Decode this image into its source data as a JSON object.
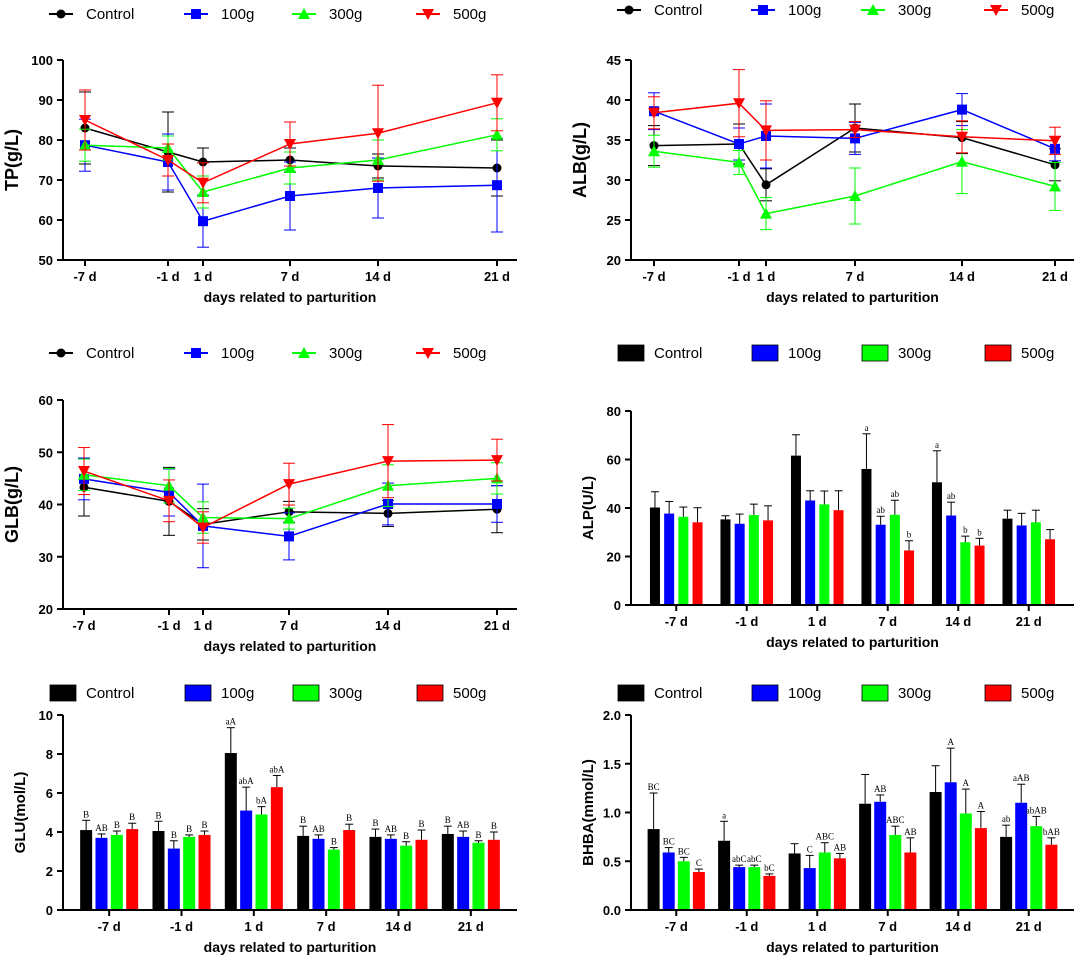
{
  "colors": {
    "Control": "#000000",
    "100g": "#0000ff",
    "300g": "#00ff00",
    "500g": "#ff0000"
  },
  "chart_data": [
    {
      "id": "tp",
      "type": "line",
      "ylabel": "TP(g/L)",
      "xlabel": "days related to parturition",
      "categories": [
        "-7 d",
        "-1 d",
        "1 d",
        "7 d",
        "14 d",
        "21 d"
      ],
      "x": [
        -7,
        -1,
        1,
        7,
        14,
        21
      ],
      "ylim": [
        50,
        100
      ],
      "yticks": [
        50,
        60,
        70,
        80,
        90,
        100
      ],
      "series": [
        {
          "name": "Control",
          "values": [
            83,
            77,
            74.5,
            75,
            73.5,
            73
          ],
          "errors": [
            9,
            10,
            3.5,
            3,
            3,
            7
          ]
        },
        {
          "name": "100g",
          "values": [
            78.7,
            74.5,
            59.7,
            66,
            68,
            68.7
          ],
          "errors": [
            6.5,
            7,
            6.5,
            8.5,
            7.5,
            11.7
          ]
        },
        {
          "name": "300g",
          "values": [
            78.7,
            78,
            67,
            73,
            75,
            81.3
          ],
          "errors": [
            4,
            3,
            4,
            4,
            5,
            4
          ]
        },
        {
          "name": "500g",
          "values": [
            85,
            75,
            69.3,
            79,
            81.7,
            89.3
          ],
          "errors": [
            7.5,
            4,
            5,
            5.5,
            12,
            7
          ]
        }
      ]
    },
    {
      "id": "alb",
      "type": "line",
      "ylabel": "ALB(g/L)",
      "xlabel": "days related to parturition",
      "categories": [
        "-7 d",
        "-1 d",
        "1 d",
        "7 d",
        "14 d",
        "21 d"
      ],
      "x": [
        -7,
        -1,
        1,
        7,
        14,
        21
      ],
      "ylim": [
        20,
        45
      ],
      "yticks": [
        20,
        25,
        30,
        35,
        40,
        45
      ],
      "series": [
        {
          "name": "Control",
          "values": [
            34.3,
            34.5,
            29.4,
            36.5,
            35.3,
            31.9
          ],
          "errors": [
            2.5,
            2.5,
            2,
            3,
            2,
            2
          ]
        },
        {
          "name": "100g",
          "values": [
            38.6,
            34.5,
            35.5,
            35.2,
            38.8,
            33.9
          ],
          "errors": [
            2.3,
            2,
            4,
            2,
            2,
            1.5
          ]
        },
        {
          "name": "300g",
          "values": [
            33.6,
            32.2,
            25.8,
            28,
            32.3,
            29.2
          ],
          "errors": [
            2,
            1.5,
            2,
            3.5,
            4,
            3
          ]
        },
        {
          "name": "500g",
          "values": [
            38.4,
            39.6,
            36.2,
            36.3,
            35.4,
            34.9
          ],
          "errors": [
            2,
            4.2,
            3.7,
            1,
            2,
            1.7
          ]
        }
      ]
    },
    {
      "id": "glb",
      "type": "line",
      "ylabel": "GLB(g/L)",
      "xlabel": "days related to parturition",
      "categories": [
        "-7 d",
        "-1 d",
        "1 d",
        "7 d",
        "14 d",
        "21 d"
      ],
      "x": [
        -7,
        -1,
        1,
        7,
        14,
        21
      ],
      "ylim": [
        20,
        60
      ],
      "yticks": [
        20,
        30,
        40,
        50,
        60
      ],
      "series": [
        {
          "name": "Control",
          "values": [
            43.3,
            40.6,
            36.2,
            38.6,
            38.3,
            39.1
          ],
          "errors": [
            5.5,
            6.5,
            3,
            2,
            2.5,
            4.5
          ]
        },
        {
          "name": "100g",
          "values": [
            44.9,
            42.3,
            35.9,
            33.9,
            40.1,
            40.1
          ],
          "errors": [
            4,
            4.5,
            8,
            4.5,
            4,
            3.5
          ]
        },
        {
          "name": "300g",
          "values": [
            45.7,
            43.6,
            37.5,
            37.3,
            43.6,
            45
          ],
          "errors": [
            3,
            3.3,
            3,
            2,
            4,
            3
          ]
        },
        {
          "name": "500g",
          "values": [
            46.4,
            40.7,
            35.6,
            43.9,
            48.3,
            48.5
          ],
          "errors": [
            4.5,
            4,
            3,
            4,
            7,
            4
          ]
        }
      ]
    },
    {
      "id": "alp",
      "type": "bar",
      "ylabel": "ALP(U/L)",
      "xlabel": "days related to parturition",
      "categories": [
        "-7 d",
        "-1 d",
        "1 d",
        "7 d",
        "14 d",
        "21 d"
      ],
      "ylim": [
        0,
        80
      ],
      "yticks": [
        0,
        20,
        40,
        60,
        80
      ],
      "series": [
        {
          "name": "Control",
          "values": [
            40.2,
            35.3,
            61.6,
            56.1,
            50.6,
            35.6
          ],
          "errors": [
            6.5,
            1.5,
            8.6,
            14.5,
            13,
            3.5
          ],
          "labels": [
            "",
            "",
            "",
            "a",
            "a",
            ""
          ]
        },
        {
          "name": "100g",
          "values": [
            37.7,
            33.5,
            43.1,
            33.1,
            36.9,
            32.8
          ],
          "errors": [
            5,
            4,
            4,
            3.5,
            5.5,
            5
          ],
          "labels": [
            "",
            "",
            "",
            "ab",
            "ab",
            ""
          ]
        },
        {
          "name": "300g",
          "values": [
            36.4,
            37.1,
            41.5,
            37.2,
            25.9,
            34.1
          ],
          "errors": [
            4,
            4.5,
            5.5,
            6,
            2.5,
            5
          ],
          "labels": [
            "",
            "",
            "",
            "ab",
            "b",
            ""
          ]
        },
        {
          "name": "500g",
          "values": [
            34.1,
            34.9,
            39.1,
            22.5,
            24.5,
            27.1
          ],
          "errors": [
            6,
            6,
            8,
            4,
            3,
            4
          ],
          "labels": [
            "",
            "",
            "",
            "b",
            "b",
            ""
          ]
        }
      ]
    },
    {
      "id": "glu",
      "type": "bar",
      "ylabel": "GLU(mol/L)",
      "xlabel": "days related to parturition",
      "categories": [
        "-7 d",
        "-1 d",
        "1 d",
        "7 d",
        "14 d",
        "21 d"
      ],
      "ylim": [
        0,
        10
      ],
      "yticks": [
        0,
        2,
        4,
        6,
        8,
        10
      ],
      "series": [
        {
          "name": "Control",
          "values": [
            4.1,
            4.05,
            8.05,
            3.8,
            3.75,
            3.9
          ],
          "errors": [
            0.5,
            0.5,
            1.3,
            0.5,
            0.4,
            0.4
          ],
          "labels": [
            "B",
            "B",
            "aA",
            "B",
            "B",
            "B"
          ]
        },
        {
          "name": "100g",
          "values": [
            3.7,
            3.15,
            5.1,
            3.65,
            3.65,
            3.75
          ],
          "errors": [
            0.2,
            0.4,
            1.2,
            0.2,
            0.2,
            0.3
          ],
          "labels": [
            "AB",
            "B",
            "abA",
            "AB",
            "AB",
            "AB"
          ]
        },
        {
          "name": "300g",
          "values": [
            3.85,
            3.75,
            4.9,
            3.1,
            3.3,
            3.45
          ],
          "errors": [
            0.2,
            0.1,
            0.4,
            0.1,
            0.2,
            0.1
          ],
          "labels": [
            "B",
            "B",
            "bA",
            "B",
            "B",
            "B"
          ]
        },
        {
          "name": "500g",
          "values": [
            4.15,
            3.85,
            6.3,
            4.1,
            3.6,
            3.6
          ],
          "errors": [
            0.3,
            0.2,
            0.6,
            0.3,
            0.5,
            0.4
          ],
          "labels": [
            "B",
            "B",
            "abA",
            "B",
            "B",
            "B"
          ]
        }
      ]
    },
    {
      "id": "bhba",
      "type": "bar",
      "ylabel": "BHBA(mmol/L)",
      "xlabel": "days related to parturition",
      "categories": [
        "-7 d",
        "-1 d",
        "1 d",
        "7 d",
        "14 d",
        "21 d"
      ],
      "ylim": [
        0,
        2.0
      ],
      "yticks": [
        0.0,
        0.5,
        1.0,
        1.5,
        2.0
      ],
      "series": [
        {
          "name": "Control",
          "values": [
            0.83,
            0.71,
            0.58,
            1.09,
            1.21,
            0.75
          ],
          "errors": [
            0.37,
            0.2,
            0.1,
            0.3,
            0.27,
            0.12
          ],
          "labels": [
            "BC",
            "a",
            "",
            "",
            "",
            ""
          ]
        },
        {
          "name": "100g",
          "values": [
            0.59,
            0.44,
            0.43,
            1.11,
            1.31,
            1.1
          ],
          "errors": [
            0.05,
            0.02,
            0.13,
            0.07,
            0.35,
            0.19
          ],
          "labels": [
            "BC",
            "abC",
            "C",
            "AB",
            "A",
            "aAB"
          ]
        },
        {
          "name": "300g",
          "values": [
            0.5,
            0.44,
            0.59,
            0.77,
            0.99,
            0.86
          ],
          "errors": [
            0.04,
            0.02,
            0.1,
            0.09,
            0.25,
            0.1
          ],
          "labels": [
            "BC",
            "abC",
            "ABC",
            "ABC",
            "A",
            "abAB"
          ]
        },
        {
          "name": "500g",
          "values": [
            0.39,
            0.35,
            0.53,
            0.59,
            0.84,
            0.67
          ],
          "errors": [
            0.03,
            0.02,
            0.05,
            0.15,
            0.17,
            0.07
          ],
          "labels": [
            "C",
            "bC",
            "AB",
            "AB",
            "A",
            "bAB"
          ]
        }
      ],
      "extra_labels": [
        {
          "category": "21 d",
          "series": "Control",
          "text": "ab"
        }
      ]
    }
  ]
}
